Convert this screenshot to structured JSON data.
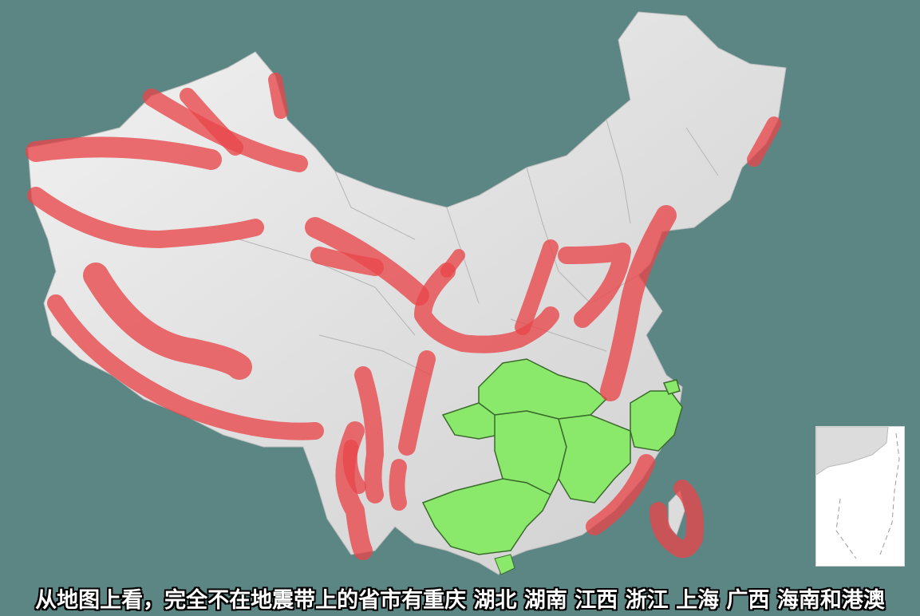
{
  "caption": "从地图上看，完全不在地震带上的省市有重庆 湖北 湖南 江西 浙江 上海 广西 海南和港澳",
  "colors": {
    "background": "#5b8683",
    "land": "#e4e4e4",
    "land_shadow": "#c9c9c9",
    "seismic_belt": "#e8474a",
    "non_seismic_region": "#8ae86b",
    "region_border": "#3a6a2c"
  },
  "legend_meaning": {
    "red_bands": "seismic-belt",
    "green_regions": "non-seismic-provinces"
  }
}
